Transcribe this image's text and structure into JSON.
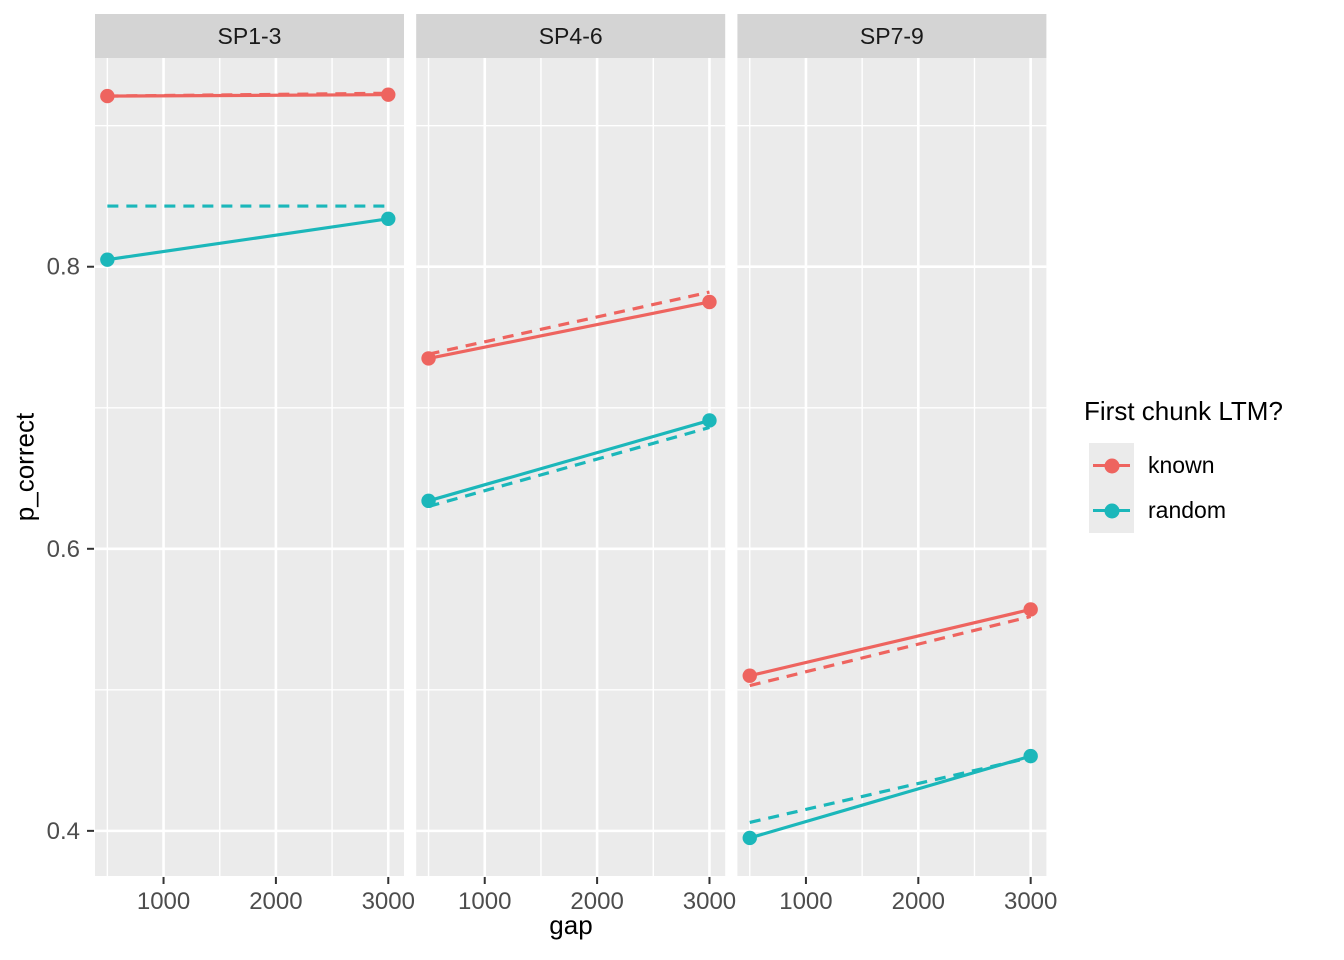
{
  "chart_data": {
    "type": "line",
    "xlabel": "gap",
    "ylabel": "p_correct",
    "x_ticks": [
      1000,
      2000,
      3000
    ],
    "x_minor": [
      500,
      1500,
      2500
    ],
    "y_ticks": [
      0.4,
      0.6,
      0.8
    ],
    "y_minor": [
      0.5,
      0.7,
      0.9
    ],
    "x_domain": [
      390,
      3140
    ],
    "y_domain": [
      0.368,
      0.948
    ],
    "grid": true,
    "colors": {
      "known": "#EE645F",
      "random": "#1BB7BA"
    },
    "theme": {
      "panel_bg": "#EBEBEB",
      "strip_bg": "#D4D4D4",
      "grid_color": "#FFFFFF",
      "tick_color": "#333333",
      "tick_label_color": "#4D4D4D",
      "strip_text_color": "#1A1A1A"
    },
    "legend": {
      "title": "First chunk LTM?",
      "position": "right",
      "entries": [
        {
          "label": "known",
          "color": "#EE645F"
        },
        {
          "label": "random",
          "color": "#1BB7BA"
        }
      ]
    },
    "facets": [
      {
        "label": "SP1-3",
        "series": [
          {
            "group": "known",
            "style": "dashed",
            "points": [
              [
                500,
                0.921
              ],
              [
                3000,
                0.923
              ]
            ]
          },
          {
            "group": "random",
            "style": "dashed",
            "points": [
              [
                500,
                0.843
              ],
              [
                3000,
                0.843
              ]
            ]
          },
          {
            "group": "known",
            "style": "solid",
            "points": [
              [
                500,
                0.921
              ],
              [
                3000,
                0.922
              ]
            ]
          },
          {
            "group": "random",
            "style": "solid",
            "points": [
              [
                500,
                0.805
              ],
              [
                3000,
                0.834
              ]
            ]
          }
        ]
      },
      {
        "label": "SP4-6",
        "series": [
          {
            "group": "known",
            "style": "dashed",
            "points": [
              [
                500,
                0.738
              ],
              [
                3000,
                0.782
              ]
            ]
          },
          {
            "group": "random",
            "style": "dashed",
            "points": [
              [
                500,
                0.63
              ],
              [
                3000,
                0.686
              ]
            ]
          },
          {
            "group": "known",
            "style": "solid",
            "points": [
              [
                500,
                0.735
              ],
              [
                3000,
                0.775
              ]
            ]
          },
          {
            "group": "random",
            "style": "solid",
            "points": [
              [
                500,
                0.634
              ],
              [
                3000,
                0.691
              ]
            ]
          }
        ]
      },
      {
        "label": "SP7-9",
        "series": [
          {
            "group": "known",
            "style": "dashed",
            "points": [
              [
                500,
                0.503
              ],
              [
                3000,
                0.552
              ]
            ]
          },
          {
            "group": "random",
            "style": "dashed",
            "points": [
              [
                500,
                0.406
              ],
              [
                3000,
                0.452
              ]
            ]
          },
          {
            "group": "known",
            "style": "solid",
            "points": [
              [
                500,
                0.51
              ],
              [
                3000,
                0.557
              ]
            ]
          },
          {
            "group": "random",
            "style": "solid",
            "points": [
              [
                500,
                0.395
              ],
              [
                3000,
                0.453
              ]
            ]
          }
        ]
      }
    ]
  }
}
